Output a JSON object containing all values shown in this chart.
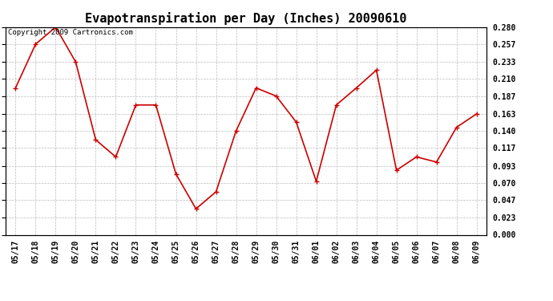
{
  "title": "Evapotranspiration per Day (Inches) 20090610",
  "copyright": "Copyright 2009 Cartronics.com",
  "x_labels": [
    "05/17",
    "05/18",
    "05/19",
    "05/20",
    "05/21",
    "05/22",
    "05/23",
    "05/24",
    "05/25",
    "05/26",
    "05/27",
    "05/28",
    "05/29",
    "05/30",
    "05/31",
    "06/01",
    "06/02",
    "06/03",
    "06/04",
    "06/05",
    "06/06",
    "06/07",
    "06/08",
    "06/09"
  ],
  "y_values": [
    0.198,
    0.257,
    0.28,
    0.233,
    0.128,
    0.105,
    0.175,
    0.175,
    0.082,
    0.035,
    0.058,
    0.14,
    0.198,
    0.187,
    0.152,
    0.072,
    0.175,
    0.198,
    0.222,
    0.087,
    0.105,
    0.098,
    0.145,
    0.163
  ],
  "line_color": "#cc0000",
  "marker": "+",
  "marker_color": "#cc0000",
  "bg_color": "#ffffff",
  "grid_color": "#bbbbbb",
  "ylim": [
    0.0,
    0.28
  ],
  "yticks": [
    0.0,
    0.023,
    0.047,
    0.07,
    0.093,
    0.117,
    0.14,
    0.163,
    0.187,
    0.21,
    0.233,
    0.257,
    0.28
  ],
  "title_fontsize": 11,
  "tick_fontsize": 7,
  "copyright_fontsize": 6.5
}
